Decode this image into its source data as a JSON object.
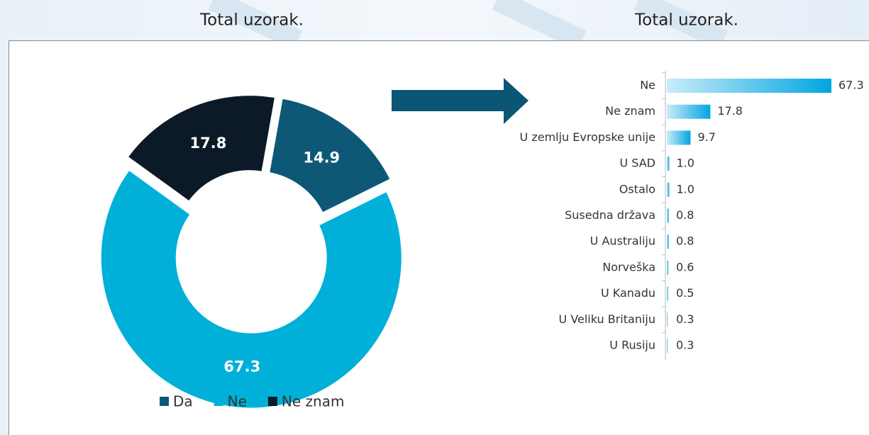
{
  "chart_data": [
    {
      "type": "donut",
      "title": "Total uzorak.",
      "categories": [
        "Da",
        "Ne",
        "Ne znam"
      ],
      "values": [
        14.9,
        67.3,
        17.8
      ],
      "colors": [
        "#0d5877",
        "#00b0d9",
        "#0c1a28"
      ],
      "legend": "bottom"
    },
    {
      "type": "barh",
      "title": "Total uzorak.",
      "categories": [
        "Ne",
        "Ne znam",
        "U zemlju Evropske unije",
        "U SAD",
        "Ostalo",
        "Susedna država",
        "U Australiju",
        "Norveška",
        "U Kanadu",
        "U Veliku Britaniju",
        "U Rusiju"
      ],
      "values": [
        67.3,
        17.8,
        9.7,
        1.0,
        1.0,
        0.8,
        0.8,
        0.6,
        0.5,
        0.3,
        0.3
      ],
      "value_labels": [
        "67.3",
        "17.8",
        "9.7",
        "1.0",
        "1.0",
        "0.8",
        "0.8",
        "0.6",
        "0.5",
        "0.3",
        "0.3"
      ],
      "color": "#00a6e0"
    }
  ]
}
